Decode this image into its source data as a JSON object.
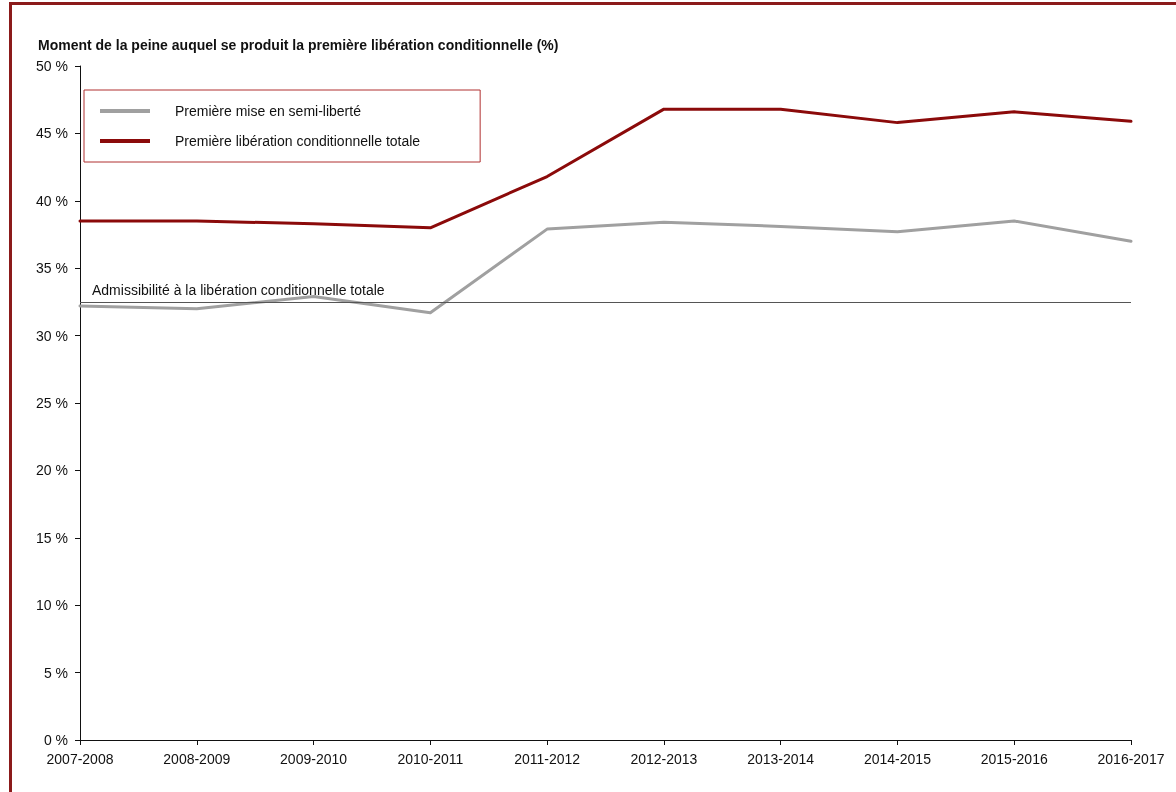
{
  "chart_data": {
    "type": "line",
    "title": "Moment de la peine auquel se produit la première libération conditionnelle (%)",
    "categories": [
      "2007-2008",
      "2008-2009",
      "2009-2010",
      "2010-2011",
      "2011-2012",
      "2012-2013",
      "2013-2014",
      "2014-2015",
      "2015-2016",
      "2016-2017"
    ],
    "series": [
      {
        "name": "Première mise en semi-liberté",
        "color": "#a0a0a0",
        "values": [
          32.2,
          32.0,
          32.9,
          31.7,
          37.9,
          38.4,
          38.1,
          37.7,
          38.5,
          37.0
        ]
      },
      {
        "name": "Première libération conditionnelle totale",
        "color": "#8b0a0a",
        "values": [
          38.5,
          38.5,
          38.3,
          38.0,
          41.8,
          46.8,
          46.8,
          45.8,
          46.6,
          45.9
        ]
      }
    ],
    "ylim": [
      0,
      50
    ],
    "yticks": [
      {
        "value": 0,
        "label": "0 %"
      },
      {
        "value": 5,
        "label": "5 %"
      },
      {
        "value": 10,
        "label": "10 %"
      },
      {
        "value": 15,
        "label": "15 %"
      },
      {
        "value": 20,
        "label": "20 %"
      },
      {
        "value": 25,
        "label": "25 %"
      },
      {
        "value": 30,
        "label": "30 %"
      },
      {
        "value": 35,
        "label": "35 %"
      },
      {
        "value": 40,
        "label": "40 %"
      },
      {
        "value": 45,
        "label": "45 %"
      },
      {
        "value": 50,
        "label": "50 %"
      }
    ],
    "ref_lines": [
      {
        "axis": "y",
        "value": 32.5,
        "label": "Admissibilité à la libération conditionnelle totale",
        "color": "#555555"
      }
    ],
    "legend": "top left",
    "grid": false,
    "marker": "none",
    "line_style": "solid"
  }
}
